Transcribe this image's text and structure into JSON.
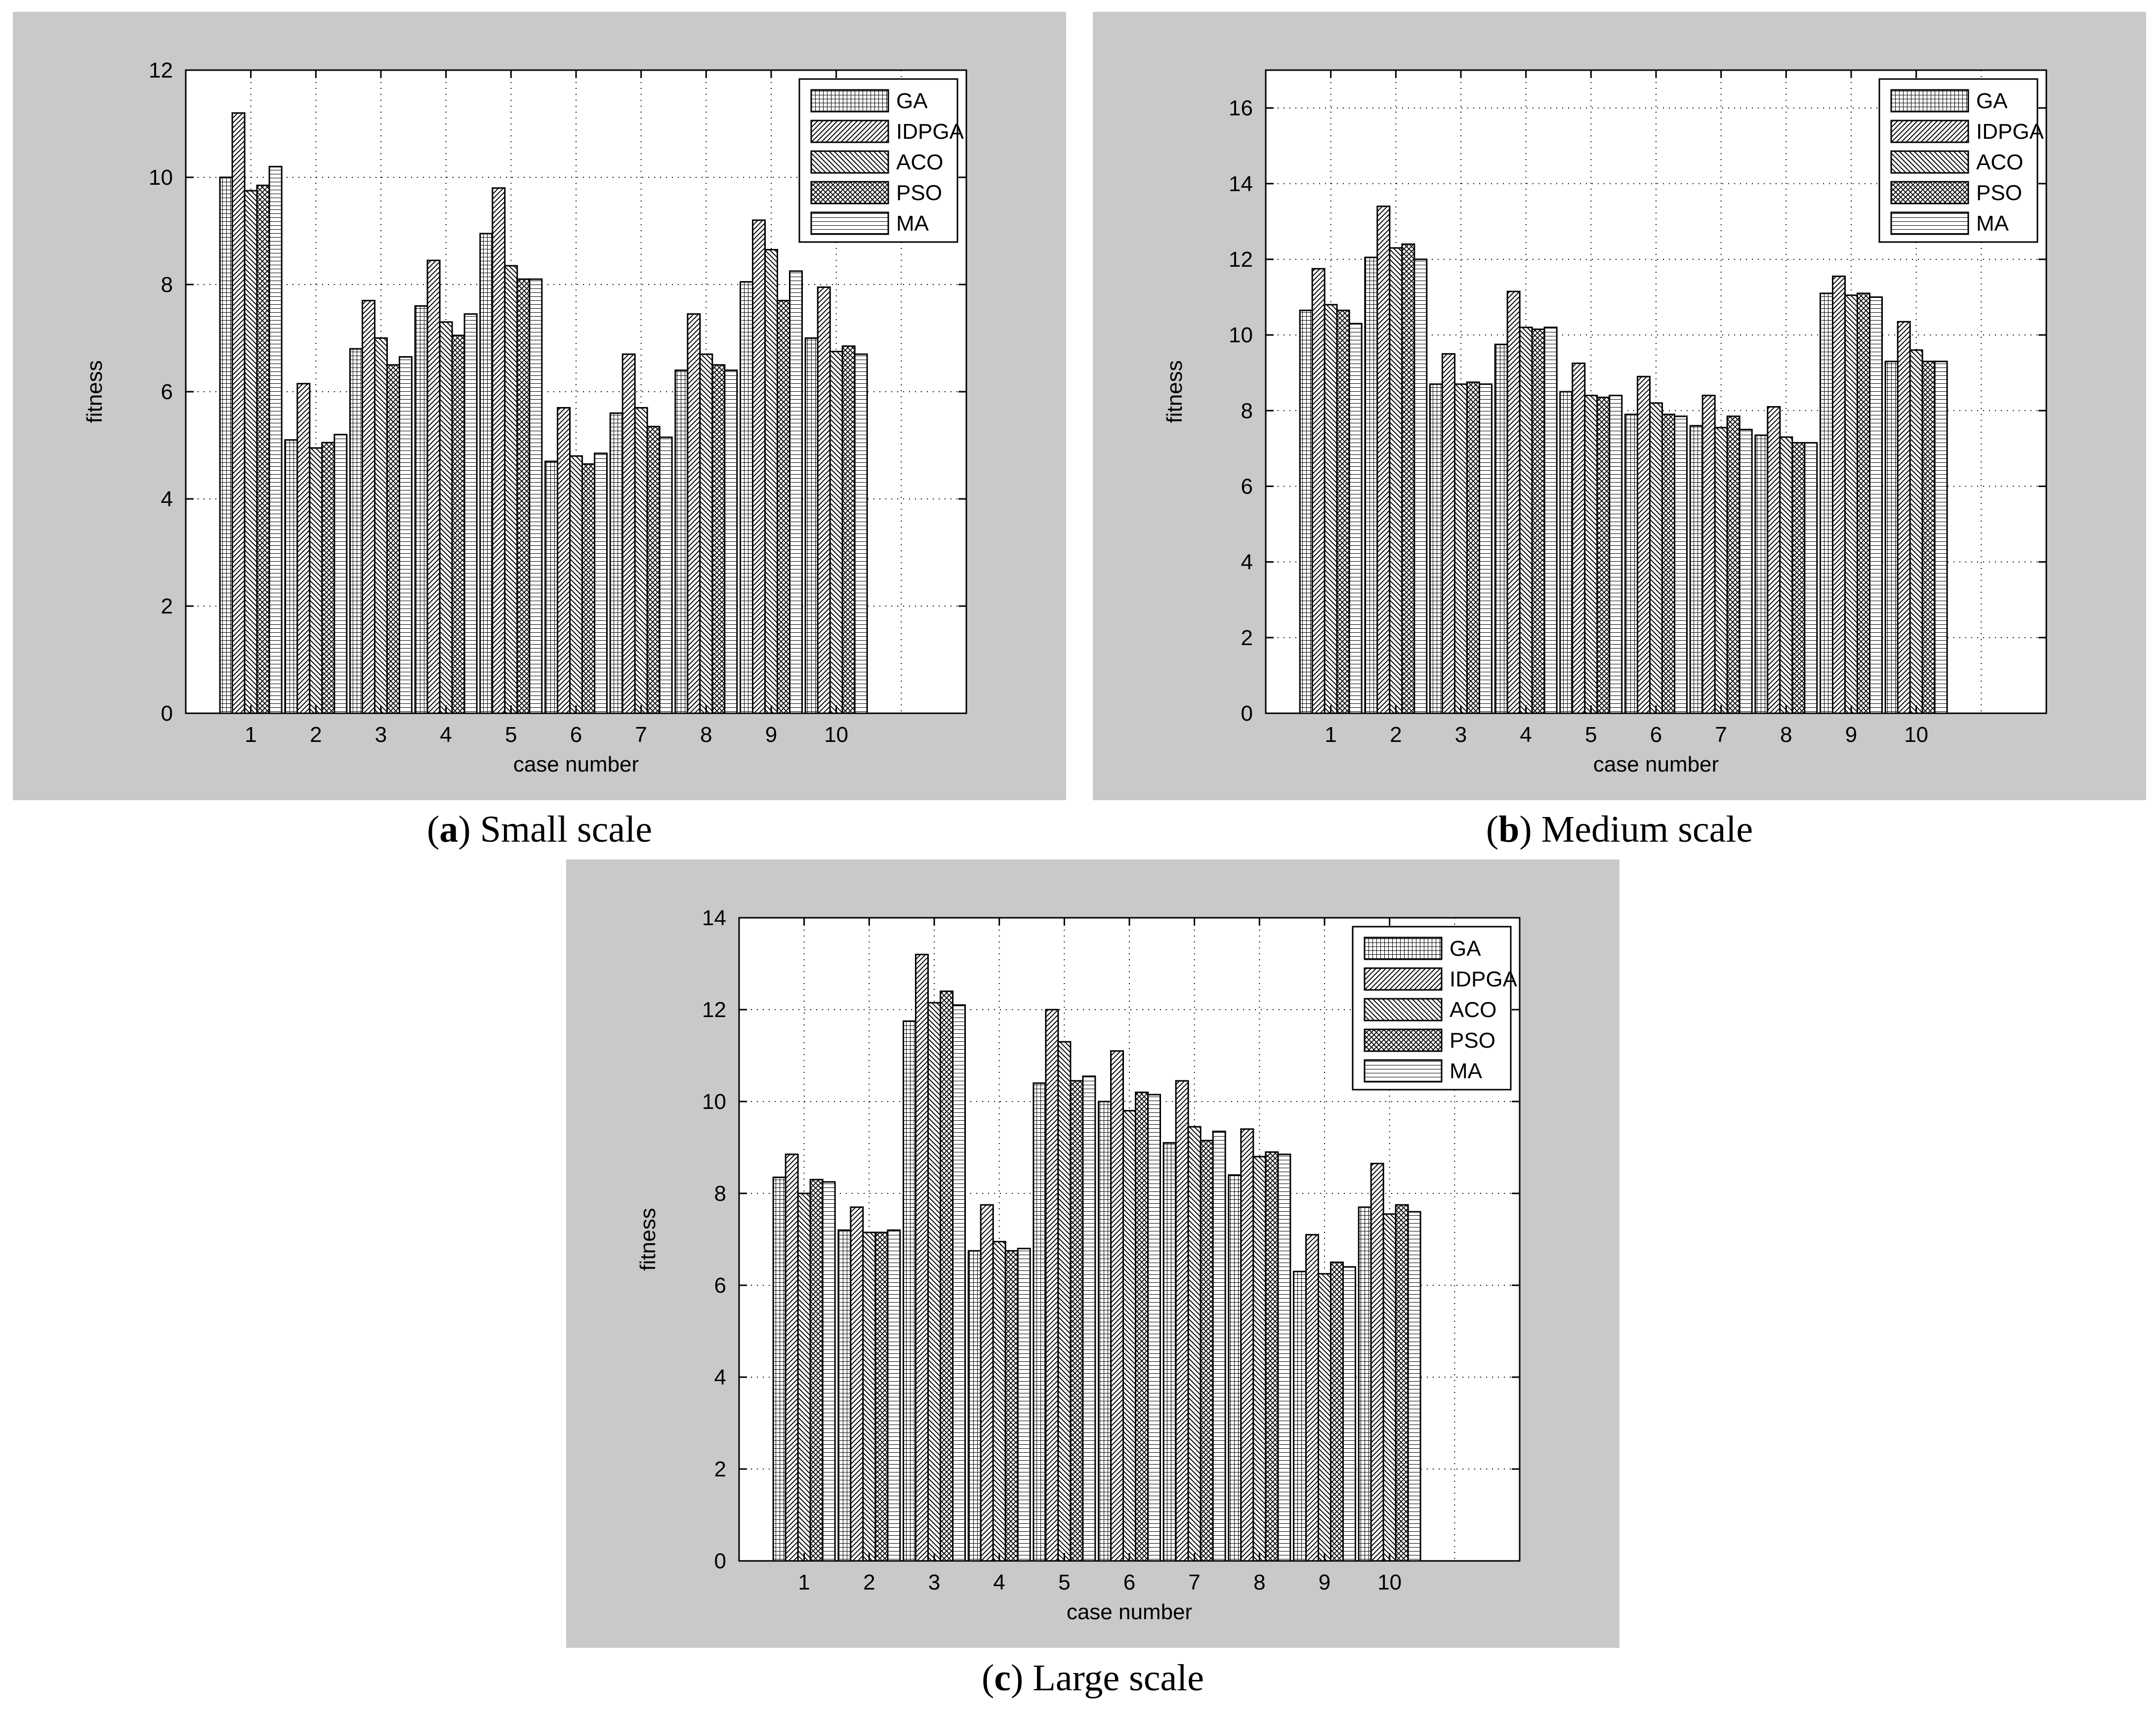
{
  "captions": [
    {
      "letter": "a",
      "text": "Small scale"
    },
    {
      "letter": "b",
      "text": "Medium scale"
    },
    {
      "letter": "c",
      "text": "Large scale"
    }
  ],
  "colors": {
    "figure_background": "#c9c9c9",
    "plot_background": "#ffffff",
    "bars": "#000000"
  },
  "chart_data": [
    {
      "type": "bar",
      "title": "",
      "xlabel": "case number",
      "ylabel": "fitness",
      "categories": [
        "1",
        "2",
        "3",
        "4",
        "5",
        "6",
        "7",
        "8",
        "9",
        "10"
      ],
      "ylim": [
        0,
        12
      ],
      "yticks": [
        0,
        2,
        4,
        6,
        8,
        10,
        12
      ],
      "grid": true,
      "legend_position": "top-right",
      "series": [
        {
          "name": "GA",
          "pattern": "grid",
          "values": [
            10.0,
            5.1,
            6.8,
            7.6,
            8.95,
            4.7,
            5.6,
            6.4,
            8.05,
            7.0
          ]
        },
        {
          "name": "IDPGA",
          "pattern": "diag-right",
          "values": [
            11.2,
            6.15,
            7.7,
            8.45,
            9.8,
            5.7,
            6.7,
            7.45,
            9.2,
            7.95
          ]
        },
        {
          "name": "ACO",
          "pattern": "diag-left",
          "values": [
            9.75,
            4.95,
            7.0,
            7.3,
            8.35,
            4.8,
            5.7,
            6.7,
            8.65,
            6.75
          ]
        },
        {
          "name": "PSO",
          "pattern": "cross",
          "values": [
            9.85,
            5.05,
            6.5,
            7.05,
            8.1,
            4.65,
            5.35,
            6.5,
            7.7,
            6.85
          ]
        },
        {
          "name": "MA",
          "pattern": "horizontal",
          "values": [
            10.2,
            5.2,
            6.65,
            7.45,
            8.1,
            4.85,
            5.15,
            6.4,
            8.25,
            6.7
          ]
        }
      ]
    },
    {
      "type": "bar",
      "title": "",
      "xlabel": "case number",
      "ylabel": "fitness",
      "categories": [
        "1",
        "2",
        "3",
        "4",
        "5",
        "6",
        "7",
        "8",
        "9",
        "10"
      ],
      "ylim": [
        0,
        17
      ],
      "yticks": [
        0,
        2,
        4,
        6,
        8,
        10,
        12,
        14,
        16
      ],
      "grid": true,
      "legend_position": "top-right",
      "series": [
        {
          "name": "GA",
          "pattern": "grid",
          "values": [
            10.65,
            12.05,
            8.7,
            9.75,
            8.5,
            7.9,
            7.6,
            7.35,
            11.1,
            9.3
          ]
        },
        {
          "name": "IDPGA",
          "pattern": "diag-right",
          "values": [
            11.75,
            13.4,
            9.5,
            11.15,
            9.25,
            8.9,
            8.4,
            8.1,
            11.55,
            10.35
          ]
        },
        {
          "name": "ACO",
          "pattern": "diag-left",
          "values": [
            10.8,
            12.3,
            8.7,
            10.2,
            8.4,
            8.2,
            7.55,
            7.3,
            11.05,
            9.6
          ]
        },
        {
          "name": "PSO",
          "pattern": "cross",
          "values": [
            10.65,
            12.4,
            8.75,
            10.15,
            8.35,
            7.9,
            7.85,
            7.15,
            11.1,
            9.3
          ]
        },
        {
          "name": "MA",
          "pattern": "horizontal",
          "values": [
            10.3,
            12.0,
            8.7,
            10.2,
            8.4,
            7.85,
            7.5,
            7.15,
            11.0,
            9.3
          ]
        }
      ]
    },
    {
      "type": "bar",
      "title": "",
      "xlabel": "case number",
      "ylabel": "fitness",
      "categories": [
        "1",
        "2",
        "3",
        "4",
        "5",
        "6",
        "7",
        "8",
        "9",
        "10"
      ],
      "ylim": [
        0,
        14
      ],
      "yticks": [
        0,
        2,
        4,
        6,
        8,
        10,
        12,
        14
      ],
      "grid": true,
      "legend_position": "top-right",
      "series": [
        {
          "name": "GA",
          "pattern": "grid",
          "values": [
            8.35,
            7.2,
            11.75,
            6.75,
            10.4,
            10.0,
            9.1,
            8.4,
            6.3,
            7.7
          ]
        },
        {
          "name": "IDPGA",
          "pattern": "diag-right",
          "values": [
            8.85,
            7.7,
            13.2,
            7.75,
            12.0,
            11.1,
            10.45,
            9.4,
            7.1,
            8.65
          ]
        },
        {
          "name": "ACO",
          "pattern": "diag-left",
          "values": [
            8.0,
            7.15,
            12.15,
            6.95,
            11.3,
            9.8,
            9.45,
            8.8,
            6.25,
            7.55
          ]
        },
        {
          "name": "PSO",
          "pattern": "cross",
          "values": [
            8.3,
            7.15,
            12.4,
            6.75,
            10.45,
            10.2,
            9.15,
            8.9,
            6.5,
            7.75
          ]
        },
        {
          "name": "MA",
          "pattern": "horizontal",
          "values": [
            8.25,
            7.2,
            12.1,
            6.8,
            10.55,
            10.15,
            9.35,
            8.85,
            6.4,
            7.6
          ]
        }
      ]
    }
  ]
}
